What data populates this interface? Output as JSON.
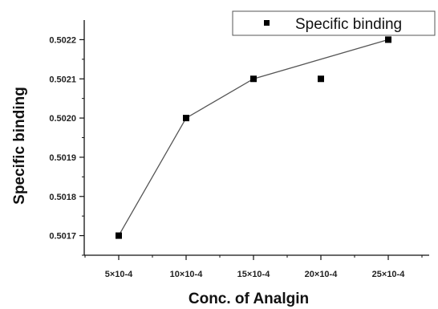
{
  "chart_data": {
    "type": "line",
    "title": "",
    "xlabel": "Conc. of Analgin",
    "ylabel": "Specific binding",
    "categories": [
      "5×10-4",
      "10×10-4",
      "15×10-4",
      "20×10-4",
      "25×10-4"
    ],
    "ylim": [
      0.50165,
      0.50225
    ],
    "yticks": [
      "0.5017",
      "0.5018",
      "0.5019",
      "0.5020",
      "0.5021",
      "0.5022"
    ],
    "yticks_values": [
      0.5017,
      0.5018,
      0.5019,
      0.502,
      0.5021,
      0.5022
    ],
    "series": [
      {
        "name": "Specific binding",
        "values": [
          0.5017,
          0.502,
          0.5021,
          0.5021,
          0.5022
        ],
        "marker": "square",
        "color": "#000000"
      }
    ],
    "fit_line": {
      "points": [
        [
          0,
          0.5017
        ],
        [
          1,
          0.502
        ],
        [
          2,
          0.5021
        ],
        [
          4,
          0.5022
        ]
      ],
      "color": "#555555"
    },
    "legend": {
      "position": "top-right",
      "entries": [
        "Specific binding"
      ]
    },
    "grid": false
  }
}
